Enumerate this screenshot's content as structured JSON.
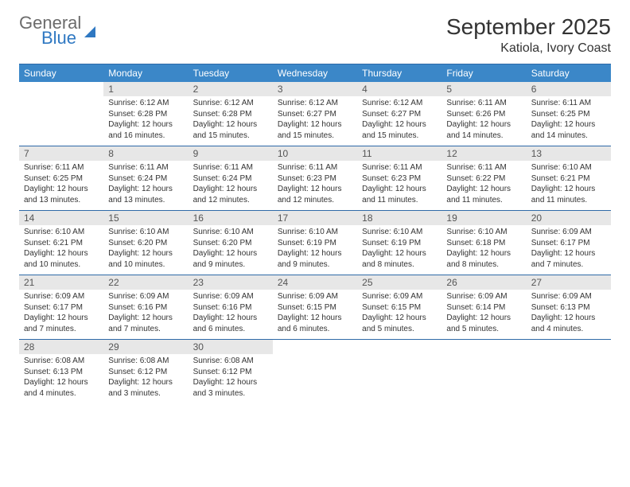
{
  "brand": {
    "line1": "General",
    "line2": "Blue"
  },
  "title": "September 2025",
  "subtitle": "Katiola, Ivory Coast",
  "colors": {
    "header_bg": "#3b87c8",
    "header_text": "#ffffff",
    "rule": "#2f6aa8",
    "daynum_bg": "#e7e7e7",
    "daynum_text": "#555555",
    "body_text": "#333333",
    "brand_gray": "#6b6b6b",
    "brand_blue": "#2f78c2"
  },
  "days_of_week": [
    "Sunday",
    "Monday",
    "Tuesday",
    "Wednesday",
    "Thursday",
    "Friday",
    "Saturday"
  ],
  "weeks": [
    [
      null,
      {
        "n": "1",
        "sr": "6:12 AM",
        "ss": "6:28 PM",
        "dl": "12 hours and 16 minutes."
      },
      {
        "n": "2",
        "sr": "6:12 AM",
        "ss": "6:28 PM",
        "dl": "12 hours and 15 minutes."
      },
      {
        "n": "3",
        "sr": "6:12 AM",
        "ss": "6:27 PM",
        "dl": "12 hours and 15 minutes."
      },
      {
        "n": "4",
        "sr": "6:12 AM",
        "ss": "6:27 PM",
        "dl": "12 hours and 15 minutes."
      },
      {
        "n": "5",
        "sr": "6:11 AM",
        "ss": "6:26 PM",
        "dl": "12 hours and 14 minutes."
      },
      {
        "n": "6",
        "sr": "6:11 AM",
        "ss": "6:25 PM",
        "dl": "12 hours and 14 minutes."
      }
    ],
    [
      {
        "n": "7",
        "sr": "6:11 AM",
        "ss": "6:25 PM",
        "dl": "12 hours and 13 minutes."
      },
      {
        "n": "8",
        "sr": "6:11 AM",
        "ss": "6:24 PM",
        "dl": "12 hours and 13 minutes."
      },
      {
        "n": "9",
        "sr": "6:11 AM",
        "ss": "6:24 PM",
        "dl": "12 hours and 12 minutes."
      },
      {
        "n": "10",
        "sr": "6:11 AM",
        "ss": "6:23 PM",
        "dl": "12 hours and 12 minutes."
      },
      {
        "n": "11",
        "sr": "6:11 AM",
        "ss": "6:23 PM",
        "dl": "12 hours and 11 minutes."
      },
      {
        "n": "12",
        "sr": "6:11 AM",
        "ss": "6:22 PM",
        "dl": "12 hours and 11 minutes."
      },
      {
        "n": "13",
        "sr": "6:10 AM",
        "ss": "6:21 PM",
        "dl": "12 hours and 11 minutes."
      }
    ],
    [
      {
        "n": "14",
        "sr": "6:10 AM",
        "ss": "6:21 PM",
        "dl": "12 hours and 10 minutes."
      },
      {
        "n": "15",
        "sr": "6:10 AM",
        "ss": "6:20 PM",
        "dl": "12 hours and 10 minutes."
      },
      {
        "n": "16",
        "sr": "6:10 AM",
        "ss": "6:20 PM",
        "dl": "12 hours and 9 minutes."
      },
      {
        "n": "17",
        "sr": "6:10 AM",
        "ss": "6:19 PM",
        "dl": "12 hours and 9 minutes."
      },
      {
        "n": "18",
        "sr": "6:10 AM",
        "ss": "6:19 PM",
        "dl": "12 hours and 8 minutes."
      },
      {
        "n": "19",
        "sr": "6:10 AM",
        "ss": "6:18 PM",
        "dl": "12 hours and 8 minutes."
      },
      {
        "n": "20",
        "sr": "6:09 AM",
        "ss": "6:17 PM",
        "dl": "12 hours and 7 minutes."
      }
    ],
    [
      {
        "n": "21",
        "sr": "6:09 AM",
        "ss": "6:17 PM",
        "dl": "12 hours and 7 minutes."
      },
      {
        "n": "22",
        "sr": "6:09 AM",
        "ss": "6:16 PM",
        "dl": "12 hours and 7 minutes."
      },
      {
        "n": "23",
        "sr": "6:09 AM",
        "ss": "6:16 PM",
        "dl": "12 hours and 6 minutes."
      },
      {
        "n": "24",
        "sr": "6:09 AM",
        "ss": "6:15 PM",
        "dl": "12 hours and 6 minutes."
      },
      {
        "n": "25",
        "sr": "6:09 AM",
        "ss": "6:15 PM",
        "dl": "12 hours and 5 minutes."
      },
      {
        "n": "26",
        "sr": "6:09 AM",
        "ss": "6:14 PM",
        "dl": "12 hours and 5 minutes."
      },
      {
        "n": "27",
        "sr": "6:09 AM",
        "ss": "6:13 PM",
        "dl": "12 hours and 4 minutes."
      }
    ],
    [
      {
        "n": "28",
        "sr": "6:08 AM",
        "ss": "6:13 PM",
        "dl": "12 hours and 4 minutes."
      },
      {
        "n": "29",
        "sr": "6:08 AM",
        "ss": "6:12 PM",
        "dl": "12 hours and 3 minutes."
      },
      {
        "n": "30",
        "sr": "6:08 AM",
        "ss": "6:12 PM",
        "dl": "12 hours and 3 minutes."
      },
      null,
      null,
      null,
      null
    ]
  ],
  "labels": {
    "sunrise": "Sunrise:",
    "sunset": "Sunset:",
    "daylight": "Daylight:"
  }
}
